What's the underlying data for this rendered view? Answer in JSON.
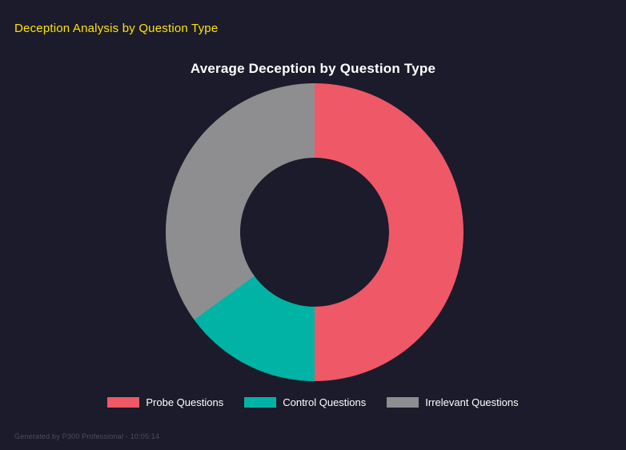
{
  "header": {
    "title": "Deception Analysis by Question Type"
  },
  "chart_data": {
    "type": "pie",
    "subtype": "donut",
    "title": "Average Deception by Question Type",
    "labels": [
      "Probe Questions",
      "Control Questions",
      "Irrelevant Questions"
    ],
    "values": [
      50,
      15,
      35
    ],
    "unit": "percent-of-total",
    "colors": [
      "#ef5866",
      "#00b3a4",
      "#8e8e90"
    ],
    "legend_position": "bottom",
    "cutout_percent": 50,
    "start_angle_deg": 0,
    "direction": "clockwise"
  },
  "colors": {
    "background": "#1b1b2b",
    "header_text": "#ffe400",
    "chart_title_text": "#ffffff",
    "legend_text": "#ffffff",
    "footer_text": "#4c4c5c"
  },
  "footer": {
    "text": "Generated by P300 Professional - 10:05:14"
  }
}
